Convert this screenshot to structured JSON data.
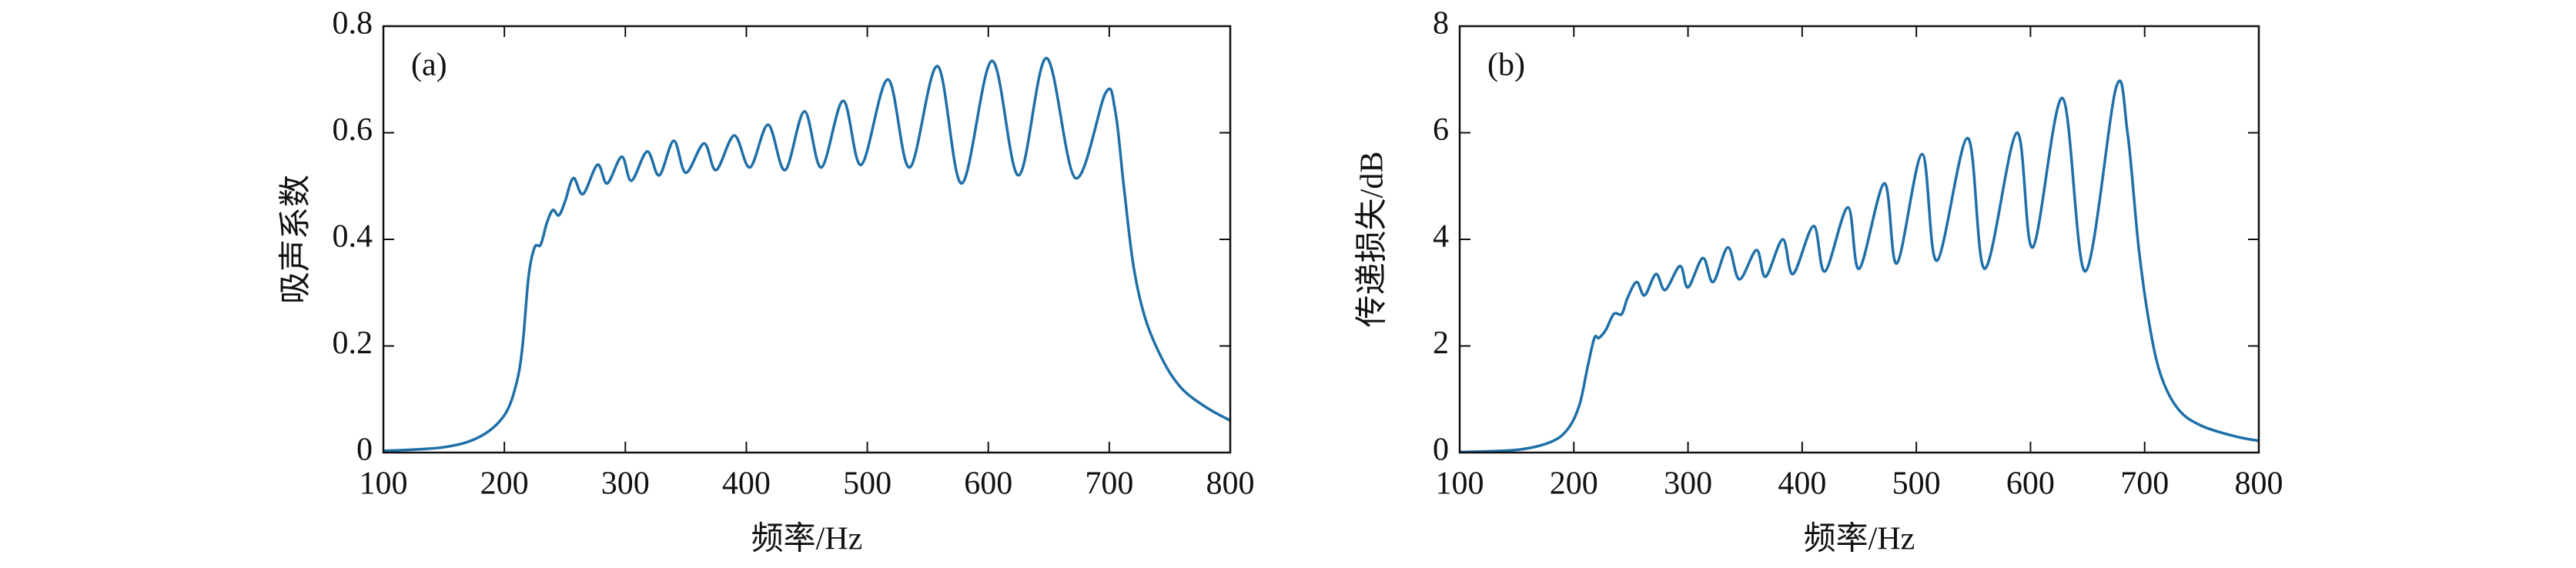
{
  "chart_data": [
    {
      "type": "line",
      "panel_label": "(a)",
      "xlabel": "频率/Hz",
      "ylabel": "吸声系数",
      "color": "#1f6fa8",
      "x": [
        100,
        150,
        180,
        200,
        210,
        215,
        220,
        225,
        230,
        235,
        240,
        245,
        250,
        257,
        265,
        277,
        285,
        297,
        305,
        318,
        328,
        340,
        350,
        365,
        375,
        390,
        403,
        418,
        432,
        448,
        462,
        480,
        495,
        517,
        535,
        558,
        578,
        603,
        625,
        648,
        672,
        697,
        705,
        712,
        720,
        730,
        745,
        760,
        780,
        800
      ],
      "values": [
        0.003,
        0.01,
        0.03,
        0.07,
        0.13,
        0.2,
        0.33,
        0.385,
        0.39,
        0.43,
        0.455,
        0.445,
        0.47,
        0.515,
        0.485,
        0.54,
        0.505,
        0.555,
        0.51,
        0.565,
        0.52,
        0.585,
        0.525,
        0.58,
        0.53,
        0.595,
        0.535,
        0.615,
        0.53,
        0.64,
        0.535,
        0.66,
        0.54,
        0.7,
        0.535,
        0.725,
        0.505,
        0.735,
        0.52,
        0.74,
        0.515,
        0.675,
        0.64,
        0.5,
        0.35,
        0.25,
        0.17,
        0.12,
        0.085,
        0.06
      ],
      "xlim": [
        100,
        800
      ],
      "xticks": [
        100,
        200,
        300,
        400,
        500,
        600,
        700,
        800
      ],
      "ylim": [
        0,
        0.8
      ],
      "yticks": [
        0,
        0.2,
        0.4,
        0.6,
        0.8
      ]
    },
    {
      "type": "line",
      "panel_label": "(b)",
      "xlabel": "频率/Hz",
      "ylabel": "传递损失/dB",
      "color": "#1f6fa8",
      "x": [
        100,
        150,
        180,
        195,
        205,
        212,
        218,
        222,
        228,
        235,
        242,
        247,
        255,
        262,
        272,
        280,
        293,
        300,
        313,
        322,
        335,
        345,
        360,
        368,
        383,
        392,
        410,
        420,
        440,
        450,
        472,
        483,
        505,
        518,
        545,
        560,
        588,
        602,
        628,
        648,
        675,
        685,
        695,
        705,
        715,
        730,
        750,
        780,
        800
      ],
      "values": [
        0.01,
        0.05,
        0.2,
        0.45,
        0.9,
        1.6,
        2.15,
        2.15,
        2.3,
        2.6,
        2.6,
        2.9,
        3.2,
        2.95,
        3.35,
        3.05,
        3.5,
        3.1,
        3.65,
        3.2,
        3.85,
        3.25,
        3.8,
        3.3,
        4.0,
        3.35,
        4.25,
        3.4,
        4.6,
        3.45,
        5.05,
        3.55,
        5.6,
        3.6,
        5.9,
        3.45,
        6.0,
        3.85,
        6.65,
        3.4,
        6.85,
        6.0,
        3.8,
        2.3,
        1.4,
        0.8,
        0.5,
        0.3,
        0.22
      ],
      "xlim": [
        100,
        800
      ],
      "xticks": [
        100,
        200,
        300,
        400,
        500,
        600,
        700,
        800
      ],
      "ylim": [
        0,
        8
      ],
      "yticks": [
        0,
        2,
        4,
        6,
        8
      ]
    }
  ]
}
